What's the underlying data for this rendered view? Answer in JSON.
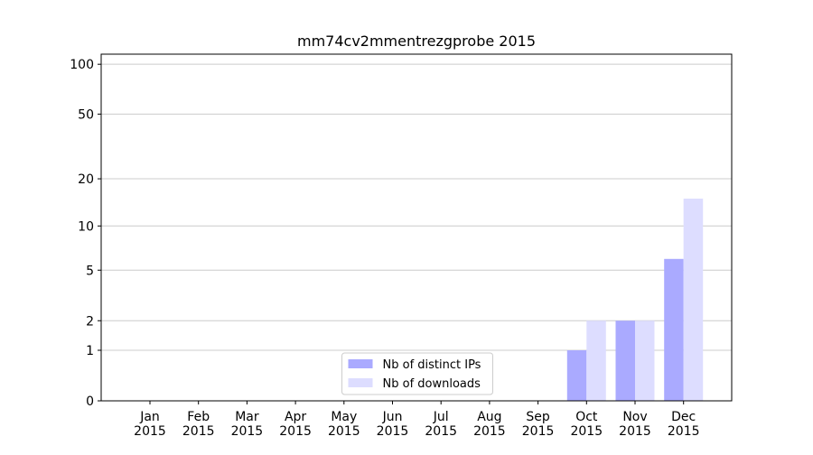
{
  "chart_data": {
    "type": "bar",
    "title": "mm74cv2mmentrezgprobe 2015",
    "categories": [
      "Jan 2015",
      "Feb 2015",
      "Mar 2015",
      "Apr 2015",
      "May 2015",
      "Jun 2015",
      "Jul 2015",
      "Aug 2015",
      "Sep 2015",
      "Oct 2015",
      "Nov 2015",
      "Dec 2015"
    ],
    "series": [
      {
        "name": "Nb of distinct IPs",
        "color": "#aaaaff",
        "values": [
          0,
          0,
          0,
          0,
          0,
          0,
          0,
          0,
          0,
          1,
          2,
          6
        ]
      },
      {
        "name": "Nb of downloads",
        "color": "#ddddff",
        "values": [
          0,
          0,
          0,
          0,
          0,
          0,
          0,
          0,
          0,
          2,
          2,
          15
        ]
      }
    ],
    "yscale": "log1p",
    "ylim": [
      0,
      115
    ],
    "yticks": [
      0,
      1,
      2,
      5,
      10,
      20,
      50,
      100
    ],
    "grid": true,
    "legend": "lower center"
  }
}
